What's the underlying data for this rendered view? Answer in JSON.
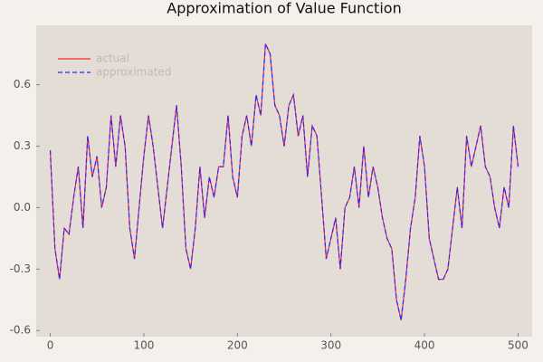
{
  "chart_data": {
    "type": "line",
    "title": "Approximation of Value Function",
    "x": [
      0,
      5,
      10,
      15,
      20,
      25,
      30,
      35,
      40,
      45,
      50,
      55,
      60,
      65,
      70,
      75,
      80,
      85,
      90,
      95,
      100,
      105,
      110,
      115,
      120,
      125,
      130,
      135,
      140,
      145,
      150,
      155,
      160,
      165,
      170,
      175,
      180,
      185,
      190,
      195,
      200,
      205,
      210,
      215,
      220,
      225,
      230,
      235,
      240,
      245,
      250,
      255,
      260,
      265,
      270,
      275,
      280,
      285,
      290,
      295,
      300,
      305,
      310,
      315,
      320,
      325,
      330,
      335,
      340,
      345,
      350,
      355,
      360,
      365,
      370,
      375,
      380,
      385,
      390,
      395,
      400,
      405,
      410,
      415,
      420,
      425,
      430,
      435,
      440,
      445,
      450,
      455,
      460,
      465,
      470,
      475,
      480,
      485,
      490,
      495,
      500
    ],
    "series": [
      {
        "name": "actual",
        "color": "#ff2a2a",
        "dash": false,
        "values": [
          0.28,
          -0.2,
          -0.35,
          -0.1,
          -0.13,
          0.05,
          0.2,
          -0.1,
          0.35,
          0.15,
          0.25,
          0.0,
          0.1,
          0.45,
          0.2,
          0.45,
          0.3,
          -0.1,
          -0.25,
          0.0,
          0.25,
          0.45,
          0.3,
          0.1,
          -0.1,
          0.1,
          0.3,
          0.5,
          0.2,
          -0.2,
          -0.3,
          -0.1,
          0.2,
          -0.05,
          0.15,
          0.05,
          0.2,
          0.2,
          0.45,
          0.15,
          0.05,
          0.35,
          0.45,
          0.3,
          0.55,
          0.45,
          0.8,
          0.75,
          0.5,
          0.45,
          0.3,
          0.5,
          0.55,
          0.35,
          0.45,
          0.15,
          0.4,
          0.35,
          0.05,
          -0.25,
          -0.15,
          -0.05,
          -0.3,
          0.0,
          0.05,
          0.2,
          0.0,
          0.3,
          0.05,
          0.2,
          0.1,
          -0.05,
          -0.15,
          -0.2,
          -0.45,
          -0.55,
          -0.35,
          -0.1,
          0.05,
          0.35,
          0.2,
          -0.15,
          -0.25,
          -0.35,
          -0.35,
          -0.3,
          -0.1,
          0.1,
          -0.1,
          0.35,
          0.2,
          0.3,
          0.4,
          0.2,
          0.15,
          0.0,
          -0.1,
          0.1,
          0.0,
          0.4,
          0.2
        ]
      },
      {
        "name": "approximated",
        "color": "#2a2aff",
        "dash": true,
        "values": [
          0.28,
          -0.2,
          -0.35,
          -0.1,
          -0.13,
          0.05,
          0.2,
          -0.1,
          0.35,
          0.15,
          0.25,
          0.0,
          0.1,
          0.45,
          0.2,
          0.45,
          0.3,
          -0.1,
          -0.25,
          0.0,
          0.25,
          0.45,
          0.3,
          0.1,
          -0.1,
          0.1,
          0.3,
          0.5,
          0.2,
          -0.2,
          -0.3,
          -0.1,
          0.2,
          -0.05,
          0.15,
          0.05,
          0.2,
          0.2,
          0.45,
          0.15,
          0.05,
          0.35,
          0.45,
          0.3,
          0.55,
          0.45,
          0.8,
          0.75,
          0.5,
          0.45,
          0.3,
          0.5,
          0.55,
          0.35,
          0.45,
          0.15,
          0.4,
          0.35,
          0.05,
          -0.25,
          -0.15,
          -0.05,
          -0.3,
          0.0,
          0.05,
          0.2,
          0.0,
          0.3,
          0.05,
          0.2,
          0.1,
          -0.05,
          -0.15,
          -0.2,
          -0.45,
          -0.55,
          -0.35,
          -0.1,
          0.05,
          0.35,
          0.2,
          -0.15,
          -0.25,
          -0.35,
          -0.35,
          -0.3,
          -0.1,
          0.1,
          -0.1,
          0.35,
          0.2,
          0.3,
          0.4,
          0.2,
          0.15,
          0.0,
          -0.1,
          0.1,
          0.0,
          0.4,
          0.2
        ]
      }
    ],
    "xlim": [
      -15,
      515
    ],
    "xticks": [
      0,
      100,
      200,
      300,
      400,
      500
    ],
    "ylim": [
      -0.63,
      0.89
    ],
    "yticks": [
      0.6,
      0.3,
      {
        "value": 0,
        "label": "0.0"
      },
      -0.3,
      -0.6
    ],
    "legend": "top-left",
    "grid": false
  }
}
